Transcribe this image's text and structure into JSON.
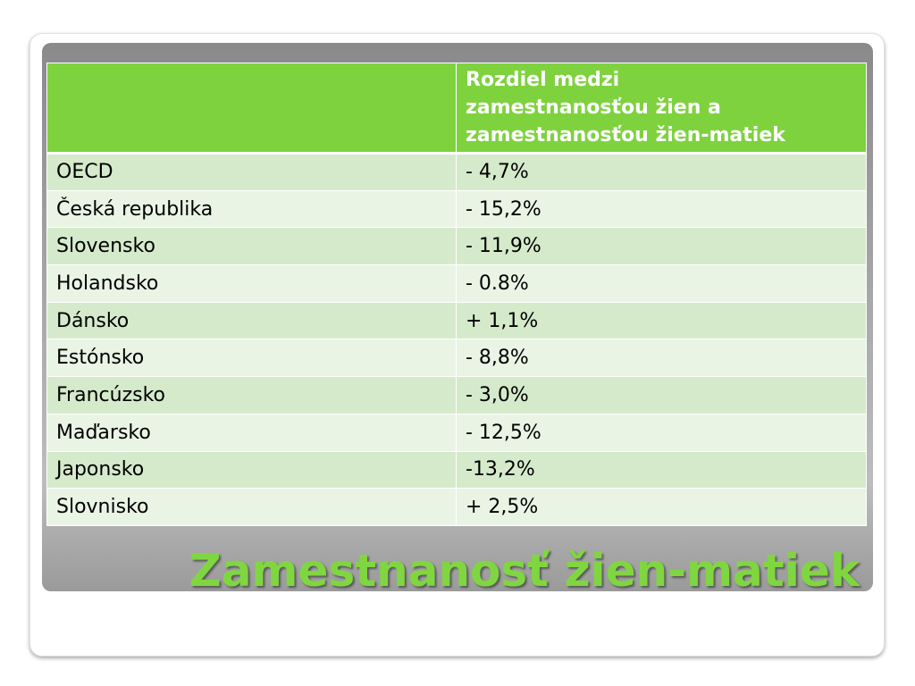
{
  "title": "Zamestnanosť žien-matiek",
  "table": {
    "header": [
      "Rozdiel medzi",
      "zamestnanosťou žien a",
      "zamestnanosťou žien-matiek"
    ],
    "rows": [
      [
        "OECD",
        "- 4,7%"
      ],
      [
        "Česká republika",
        "- 15,2%"
      ],
      [
        "Slovensko",
        "- 11,9%"
      ],
      [
        "Holandsko",
        "- 0.8%"
      ],
      [
        "Dánsko",
        "+ 1,1%"
      ],
      [
        "Estónsko",
        "- 8,8%"
      ],
      [
        "Francúzsko",
        "- 3,0%"
      ],
      [
        "Maďarsko",
        "- 12,5%"
      ],
      [
        "Japonsko",
        "-13,2%"
      ],
      [
        "Slovnisko",
        "+ 2,5%"
      ]
    ]
  }
}
